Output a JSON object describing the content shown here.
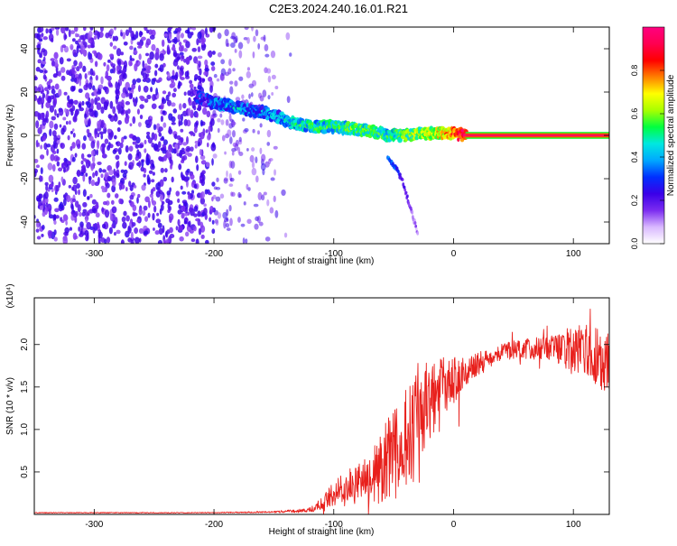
{
  "title": "C2E3.2024.240.16.01.R21",
  "chart_data": [
    {
      "type": "heatmap",
      "xlabel": "Height of straight line (km)",
      "ylabel": "Frequency (Hz)",
      "xlim": [
        -350,
        130
      ],
      "ylim": [
        -50,
        50
      ],
      "x_ticks": [
        -300,
        -200,
        -100,
        0,
        100
      ],
      "y_ticks": [
        -40,
        -20,
        0,
        20,
        40
      ],
      "colorbar": {
        "label": "Normalized spectral amplitude",
        "range": [
          0,
          1
        ],
        "ticks": [
          "0.0",
          "0.2",
          "0.4",
          "0.6",
          "0.8"
        ],
        "colors": [
          "#ffffff",
          "#d9b8ff",
          "#7b2cf0",
          "#3a00e8",
          "#0030ff",
          "#00a8ff",
          "#00e8e0",
          "#00ff40",
          "#a8ff00",
          "#ffff00",
          "#ff8000",
          "#ff0000",
          "#ff0050",
          "#ff0080"
        ]
      },
      "signal_track": [
        {
          "x": -215,
          "y": 18,
          "amp": 0.25
        },
        {
          "x": -200,
          "y": 15,
          "amp": 0.35
        },
        {
          "x": -190,
          "y": 14,
          "amp": 0.4
        },
        {
          "x": -175,
          "y": 12,
          "amp": 0.38
        },
        {
          "x": -160,
          "y": 11,
          "amp": 0.35
        },
        {
          "x": -145,
          "y": 8,
          "amp": 0.4
        },
        {
          "x": -130,
          "y": 5,
          "amp": 0.45
        },
        {
          "x": -115,
          "y": 4,
          "amp": 0.5
        },
        {
          "x": -100,
          "y": 4,
          "amp": 0.5
        },
        {
          "x": -85,
          "y": 3,
          "amp": 0.55
        },
        {
          "x": -70,
          "y": 2,
          "amp": 0.55
        },
        {
          "x": -55,
          "y": 0,
          "amp": 0.5
        },
        {
          "x": -40,
          "y": 0,
          "amp": 0.55
        },
        {
          "x": -25,
          "y": 1,
          "amp": 0.65
        },
        {
          "x": -10,
          "y": 1,
          "amp": 0.7
        },
        {
          "x": 0,
          "y": 1,
          "amp": 0.8
        },
        {
          "x": 10,
          "y": 0,
          "amp": 0.95
        },
        {
          "x": 125,
          "y": 0,
          "amp": 0.95
        }
      ],
      "secondary_branch": [
        {
          "x": -55,
          "y": -10,
          "amp": 0.3
        },
        {
          "x": -48,
          "y": -15,
          "amp": 0.25
        },
        {
          "x": -42,
          "y": -22,
          "amp": 0.15
        },
        {
          "x": -30,
          "y": -45,
          "amp": 0.05
        }
      ]
    },
    {
      "type": "line",
      "xlabel": "Height of straight line (km)",
      "ylabel": "SNR (10 * v/v)",
      "y_multiplier": "(x10⁴)",
      "xlim": [
        -350,
        130
      ],
      "ylim": [
        0,
        2.55
      ],
      "x_ticks": [
        -300,
        -200,
        -100,
        0,
        100
      ],
      "y_ticks": [
        "0.5",
        "1.0",
        "1.5",
        "2.0"
      ],
      "color": "#e8201c",
      "envelope": [
        {
          "x": -350,
          "mean": 0.02,
          "spread": 0.005
        },
        {
          "x": -200,
          "mean": 0.02,
          "spread": 0.005
        },
        {
          "x": -150,
          "mean": 0.03,
          "spread": 0.01
        },
        {
          "x": -120,
          "mean": 0.05,
          "spread": 0.03
        },
        {
          "x": -110,
          "mean": 0.12,
          "spread": 0.08
        },
        {
          "x": -100,
          "mean": 0.25,
          "spread": 0.15
        },
        {
          "x": -90,
          "mean": 0.3,
          "spread": 0.22
        },
        {
          "x": -80,
          "mean": 0.35,
          "spread": 0.25
        },
        {
          "x": -70,
          "mean": 0.4,
          "spread": 0.3
        },
        {
          "x": -60,
          "mean": 0.55,
          "spread": 0.45
        },
        {
          "x": -50,
          "mean": 0.7,
          "spread": 0.55
        },
        {
          "x": -40,
          "mean": 0.9,
          "spread": 0.6
        },
        {
          "x": -30,
          "mean": 1.1,
          "spread": 0.7
        },
        {
          "x": -20,
          "mean": 1.35,
          "spread": 0.5
        },
        {
          "x": -10,
          "mean": 1.5,
          "spread": 0.35
        },
        {
          "x": 0,
          "mean": 1.55,
          "spread": 0.3
        },
        {
          "x": 10,
          "mean": 1.65,
          "spread": 0.2
        },
        {
          "x": 20,
          "mean": 1.75,
          "spread": 0.15
        },
        {
          "x": 30,
          "mean": 1.85,
          "spread": 0.12
        },
        {
          "x": 40,
          "mean": 1.92,
          "spread": 0.1
        },
        {
          "x": 60,
          "mean": 1.95,
          "spread": 0.12
        },
        {
          "x": 80,
          "mean": 1.95,
          "spread": 0.15
        },
        {
          "x": 95,
          "mean": 1.95,
          "spread": 0.25
        },
        {
          "x": 110,
          "mean": 1.95,
          "spread": 0.3
        },
        {
          "x": 120,
          "mean": 1.85,
          "spread": 0.35
        },
        {
          "x": 130,
          "mean": 1.75,
          "spread": 0.4
        }
      ]
    }
  ]
}
